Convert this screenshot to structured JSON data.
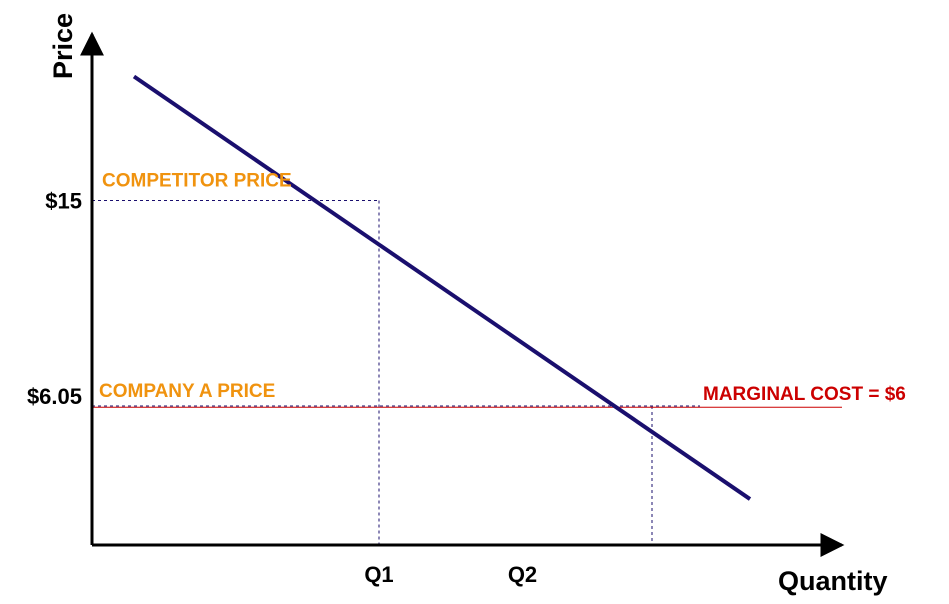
{
  "chart_data": {
    "type": "line",
    "title": "",
    "xlabel": "Quantity",
    "ylabel": "Price",
    "ylim": [
      0,
      20.9
    ],
    "xlim": [
      0,
      10
    ],
    "x_tick_labels": [
      "Q1",
      "Q2"
    ],
    "y_tick_labels": [
      "$15",
      "$6.05"
    ],
    "series": [
      {
        "values": [
          [
            0.6,
            20.4
          ],
          [
            9.4,
            2.0
          ]
        ]
      }
    ],
    "reference_lines": {
      "marginal_cost_y": 6,
      "competitor_price_y": 15,
      "company_a_price_y": 6.05,
      "q1_x": 4.1,
      "q2_x": 8.0
    },
    "annotations": {
      "competitor_price": "COMPETITOR PRICE",
      "company_a_price": "COMPANY A PRICE",
      "marginal_cost": "MARGINAL COST = $6"
    },
    "colors": {
      "demand_line": "#1a0f6e",
      "price_label": "#f0930f",
      "marginal_cost": "#cc0000",
      "axis": "#000000",
      "guide": "#1a0f6e"
    },
    "grid": false
  }
}
